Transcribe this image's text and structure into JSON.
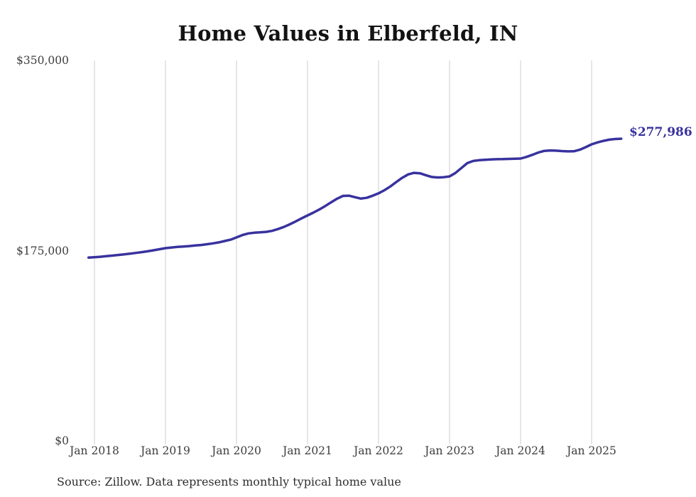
{
  "title": "Home Values in Elberfeld, IN",
  "source_note": "Source: Zillow. Data represents monthly typical home value",
  "end_label": "$277,986",
  "colors": {
    "line": "#38329e",
    "end_label_text": "#38329e",
    "gridline": "#cdcdcd",
    "axis_text": "#3d3d3d",
    "title_text": "#131313",
    "source_text": "#2e2e2e",
    "background": "#ffffff"
  },
  "chart_data": {
    "type": "line",
    "title": "Home Values in Elberfeld, IN",
    "xlabel": "",
    "ylabel": "",
    "ylim": [
      0,
      350000
    ],
    "grid": "vertical",
    "legend": "none",
    "frequency": "monthly",
    "start_month": "2017-12",
    "end_month": "2025-06",
    "y_ticks": [
      {
        "label": "$350,000",
        "value": 350000
      },
      {
        "label": "$175,000",
        "value": 175000
      },
      {
        "label": "$0",
        "value": 0
      }
    ],
    "x_ticks": [
      {
        "label": "Jan 2018",
        "month_index": 1
      },
      {
        "label": "Jan 2019",
        "month_index": 13
      },
      {
        "label": "Jan 2020",
        "month_index": 25
      },
      {
        "label": "Jan 2021",
        "month_index": 37
      },
      {
        "label": "Jan 2022",
        "month_index": 49
      },
      {
        "label": "Jan 2023",
        "month_index": 61
      },
      {
        "label": "Jan 2024",
        "month_index": 73
      },
      {
        "label": "Jan 2025",
        "month_index": 85
      }
    ],
    "series": [
      {
        "name": "Typical home value",
        "color": "#38329e",
        "end_value": 277986,
        "end_label": "$277,986",
        "values": [
          168600,
          169000,
          169400,
          169900,
          170400,
          171000,
          171600,
          172200,
          172900,
          173600,
          174400,
          175300,
          176300,
          177300,
          177900,
          178400,
          178800,
          179200,
          179700,
          180200,
          180900,
          181700,
          182600,
          183800,
          185100,
          187200,
          189300,
          190800,
          191500,
          191800,
          192300,
          193200,
          194800,
          196800,
          199200,
          201900,
          204700,
          207400,
          210000,
          212900,
          216100,
          219500,
          222800,
          225400,
          225600,
          224200,
          222900,
          223600,
          225500,
          227700,
          230600,
          234100,
          238100,
          242000,
          245100,
          246600,
          246200,
          244400,
          242800,
          242300,
          242600,
          243300,
          246500,
          251000,
          255500,
          257500,
          258200,
          258600,
          258900,
          259100,
          259200,
          259400,
          259500,
          259700,
          261200,
          263200,
          265300,
          266800,
          267200,
          267000,
          266600,
          266300,
          266400,
          267800,
          270200,
          272800,
          274600,
          276000,
          277100,
          277700,
          277986
        ]
      }
    ]
  }
}
